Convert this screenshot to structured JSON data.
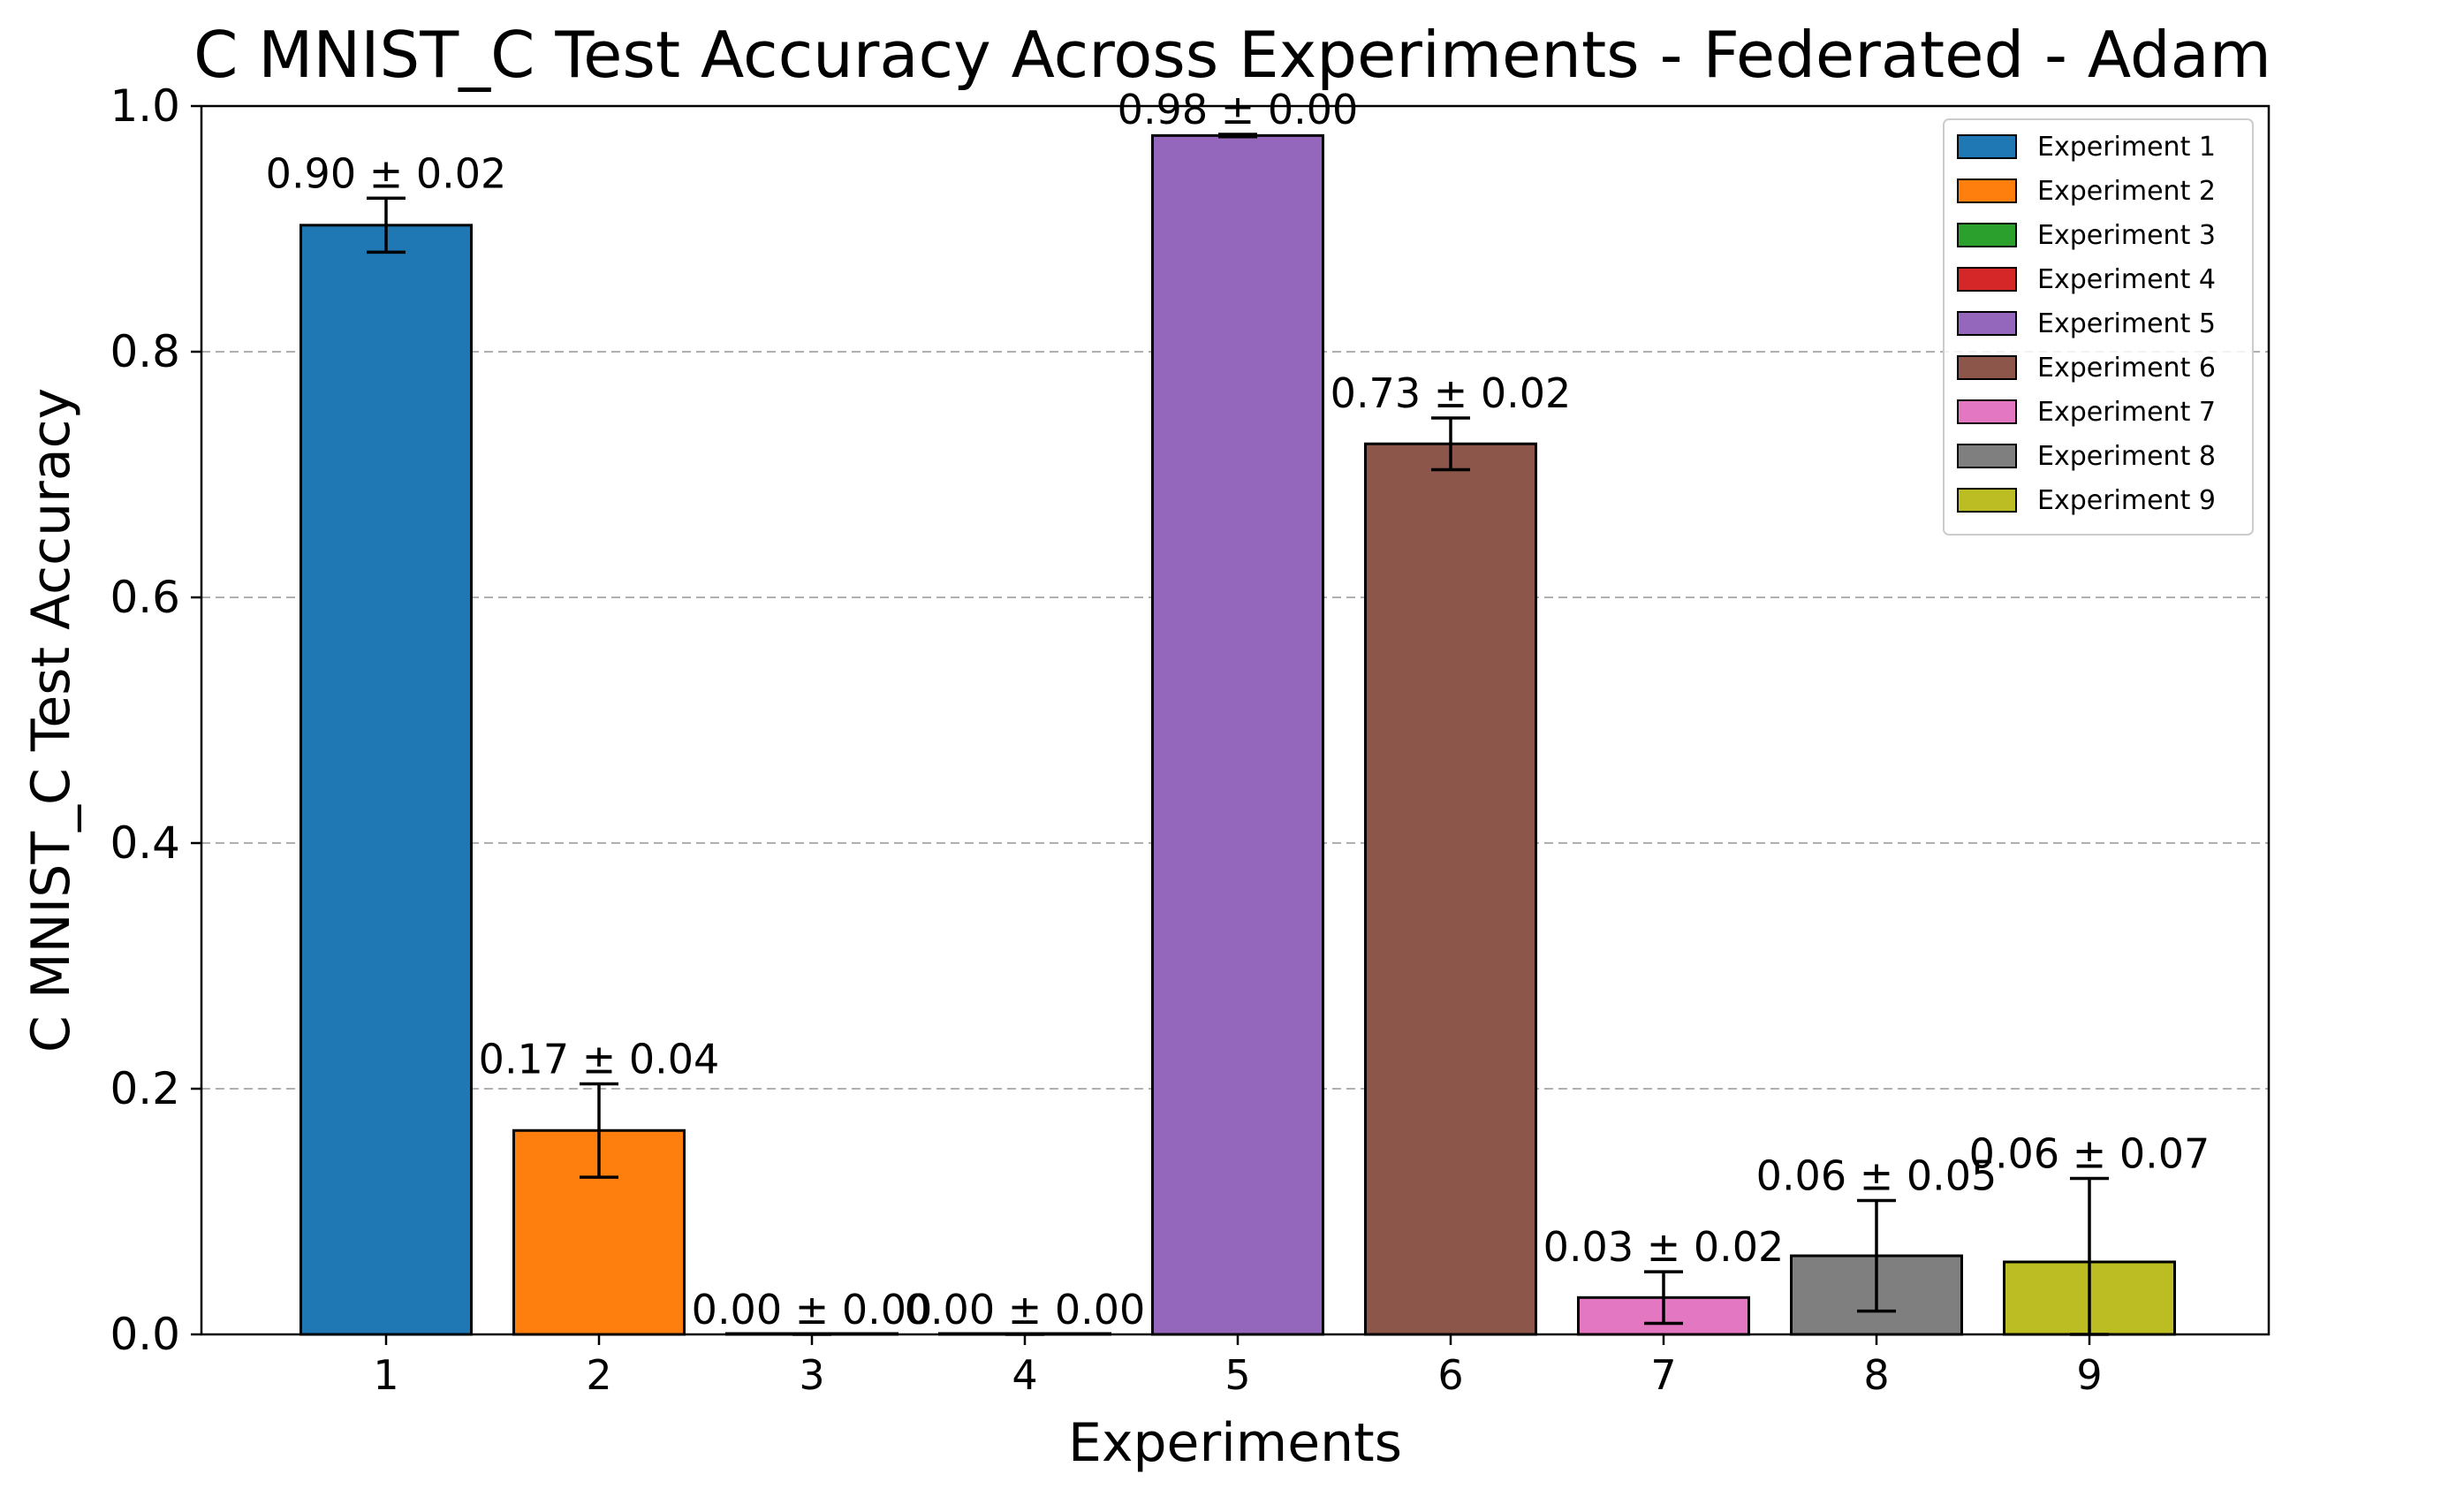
{
  "chart_data": {
    "type": "bar",
    "title": "C MNIST_C Test Accuracy Across Experiments - Federated - Adam",
    "xlabel": "Experiments",
    "ylabel": "C MNIST_C Test Accuracy",
    "ylim": [
      0,
      1.0
    ],
    "yticks": [
      "0.0",
      "0.2",
      "0.4",
      "0.6",
      "0.8",
      "1.0"
    ],
    "ytick_values": [
      0,
      0.2,
      0.4,
      0.6,
      0.8,
      1.0
    ],
    "grid": "y-dashed",
    "legend_position": "top-right",
    "categories": [
      "1",
      "2",
      "3",
      "4",
      "5",
      "6",
      "7",
      "8",
      "9"
    ],
    "values": [
      0.903,
      0.166,
      0.0,
      0.0,
      0.976,
      0.725,
      0.03,
      0.064,
      0.059
    ],
    "errors": [
      0.022,
      0.038,
      0.0,
      0.0,
      0.001,
      0.021,
      0.021,
      0.045,
      0.068
    ],
    "labels": [
      "0.90 ± 0.02",
      "0.17 ± 0.04",
      "0.00 ± 0.00",
      "0.00 ± 0.00",
      "0.98 ± 0.00",
      "0.73 ± 0.02",
      "0.03 ± 0.02",
      "0.06 ± 0.05",
      "0.06 ± 0.07"
    ],
    "series_names": [
      "Experiment 1",
      "Experiment 2",
      "Experiment 3",
      "Experiment 4",
      "Experiment 5",
      "Experiment 6",
      "Experiment 7",
      "Experiment 8",
      "Experiment 9"
    ],
    "colors": [
      "#1f77b4",
      "#ff7f0e",
      "#2ca02c",
      "#d62728",
      "#9467bd",
      "#8c564b",
      "#e377c2",
      "#7f7f7f",
      "#bcbd22"
    ]
  }
}
